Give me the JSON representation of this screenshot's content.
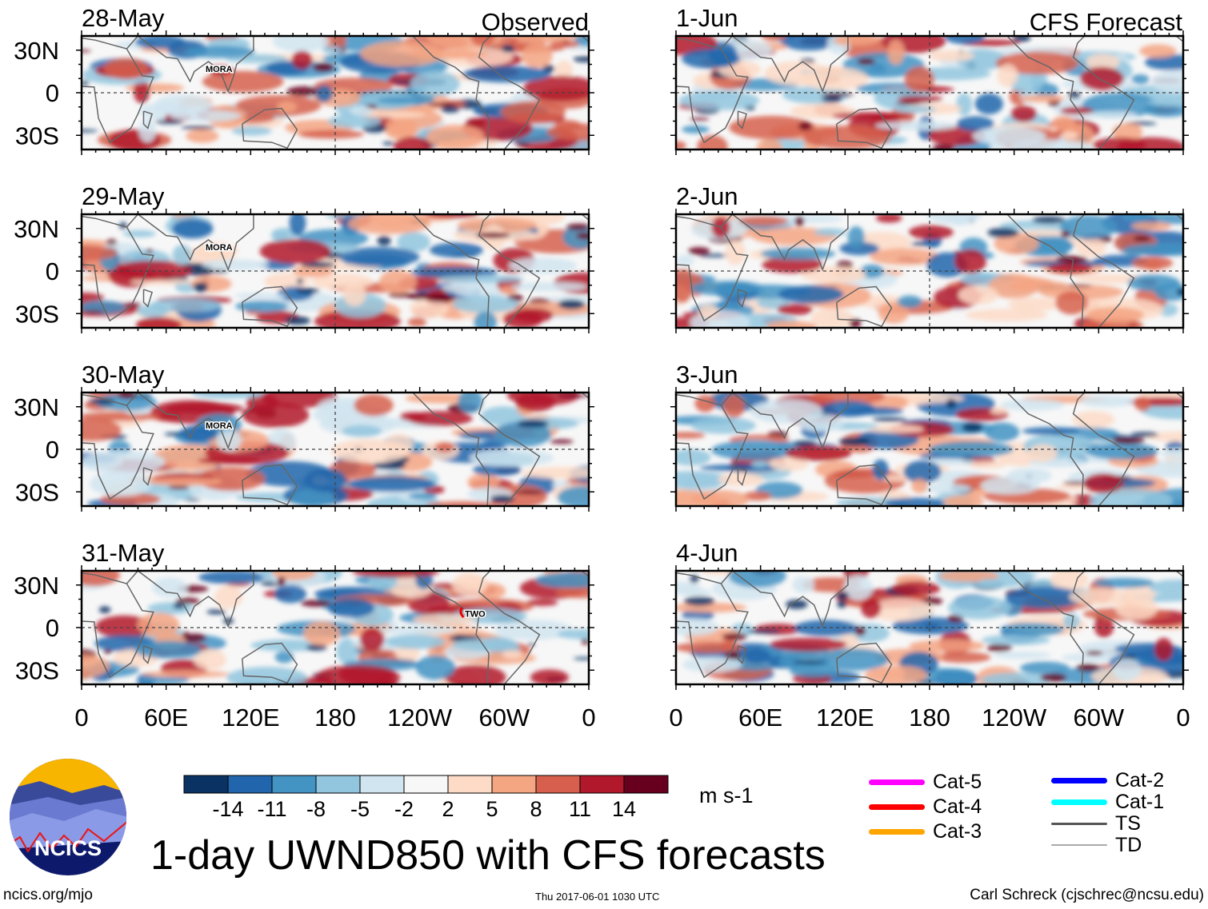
{
  "observed_label": "Observed",
  "forecast_label": "CFS Forecast",
  "lat_labels": [
    "30N",
    "0",
    "30S"
  ],
  "lon_labels": [
    "0",
    "60E",
    "120E",
    "180",
    "120W",
    "60W",
    "0"
  ],
  "observed_panels": [
    {
      "date": "28-May",
      "storms": [
        {
          "name": "MORA"
        }
      ]
    },
    {
      "date": "29-May",
      "storms": [
        {
          "name": "MORA"
        }
      ]
    },
    {
      "date": "30-May",
      "storms": [
        {
          "name": "MORA"
        }
      ]
    },
    {
      "date": "31-May",
      "storms": [
        {
          "name": "TWO"
        }
      ]
    }
  ],
  "forecast_panels": [
    {
      "date": "1-Jun"
    },
    {
      "date": "2-Jun"
    },
    {
      "date": "3-Jun"
    },
    {
      "date": "4-Jun"
    }
  ],
  "colorbar": {
    "labels": [
      "-14",
      "-11",
      "-8",
      "-5",
      "-2",
      "2",
      "5",
      "8",
      "11",
      "14"
    ],
    "colors": [
      "#0a3263",
      "#2166ac",
      "#4393c3",
      "#92c5de",
      "#d1e5f0",
      "#f7f7f7",
      "#fddbc7",
      "#f4a582",
      "#d6604d",
      "#b2182b",
      "#67001f"
    ],
    "units": "m s-1"
  },
  "storm_legend": [
    {
      "label": "Cat-5",
      "color": "#ff00ff"
    },
    {
      "label": "Cat-4",
      "color": "#ff0000"
    },
    {
      "label": "Cat-3",
      "color": "#ffa500"
    },
    {
      "label": "Cat-2",
      "color": "#0000ff"
    },
    {
      "label": "Cat-1",
      "color": "#00ffff"
    },
    {
      "label": "TS",
      "color": "#555555"
    },
    {
      "label": "TD",
      "color": "#aaaaaa"
    }
  ],
  "title": "1-day UWND850 with CFS forecasts",
  "logo_text": "NCICS",
  "footer": {
    "left": "ncics.org/mjo",
    "center": "Thu 2017-06-01 1030 UTC",
    "right": "Carl Schreck (cjschrec@ncsu.edu)"
  }
}
